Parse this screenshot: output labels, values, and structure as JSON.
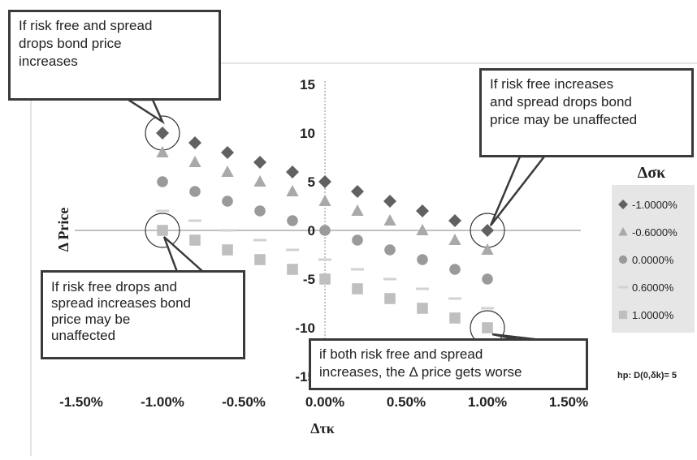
{
  "chart_data": {
    "type": "scatter",
    "xlabel": "Δτκ",
    "ylabel": "Δ  Price",
    "xlim": [
      -0.015,
      0.015
    ],
    "ylim": [
      -15,
      15
    ],
    "x_ticks": [
      "-1.50%",
      "-1.00%",
      "-0.50%",
      "0.00%",
      "0.50%",
      "1.00%",
      "1.50%"
    ],
    "y_ticks": [
      "15",
      "10",
      "5",
      "0",
      "-5",
      "-10",
      "-15"
    ],
    "grid": false,
    "legend_title": "Δσκ",
    "legend_position": "right",
    "x": [
      -0.01,
      -0.008,
      -0.006,
      -0.004,
      -0.002,
      0.0,
      0.002,
      0.004,
      0.006,
      0.008,
      0.01
    ],
    "series": [
      {
        "name": "-1.0000%",
        "marker": "diamond",
        "color": "#616161",
        "values": [
          10,
          9,
          8,
          7,
          6,
          5,
          4,
          3,
          2,
          1,
          0
        ]
      },
      {
        "name": "-0.6000%",
        "marker": "triangle",
        "color": "#a9a9a9",
        "values": [
          8,
          7,
          6,
          5,
          4,
          3,
          2,
          1,
          0,
          -1,
          -2
        ]
      },
      {
        "name": "0.0000%",
        "marker": "circle",
        "color": "#9a9a9a",
        "values": [
          5,
          4,
          3,
          2,
          1,
          0,
          -1,
          -2,
          -3,
          -4,
          -5
        ]
      },
      {
        "name": "0.6000%",
        "marker": "dash",
        "color": "#d2d2d2",
        "values": [
          2,
          1,
          0,
          -1,
          -2,
          -3,
          -4,
          -5,
          -6,
          -7,
          -8
        ]
      },
      {
        "name": "1.0000%",
        "marker": "square",
        "color": "#bfbfbf",
        "values": [
          0,
          -1,
          -2,
          -3,
          -4,
          -5,
          -6,
          -7,
          -8,
          -9,
          -10
        ]
      }
    ],
    "annotations": [
      {
        "text": "If risk free and spread drops bond price increases",
        "x": -0.01,
        "y": 10
      },
      {
        "text": "If risk free  increases and spread drops bond price may be  unaffected",
        "x": 0.01,
        "y": 0
      },
      {
        "text": "If risk free drops and spread increases bond price may be unaffected",
        "x": -0.01,
        "y": 0
      },
      {
        "text": "if both risk free and spread increases, the Δ price  gets  worse",
        "x": 0.01,
        "y": -10
      }
    ],
    "note": "hp: D(0,δk)= 5"
  },
  "callouts": {
    "top_left": [
      "If risk free and spread",
      "drops bond price",
      "increases"
    ],
    "top_right": [
      "If risk free  increases",
      "and spread drops bond",
      "price may be  unaffected"
    ],
    "bottom_left": [
      "If risk free drops and",
      "spread increases bond",
      "price may be",
      "unaffected"
    ],
    "bottom_right": [
      "if both  risk free and spread",
      "increases, the Δ price  gets  worse"
    ]
  },
  "colors": {
    "legend_background": "#e6e6e6",
    "axis_line": "#9a9a9a",
    "callout_border": "#3a3a3a"
  }
}
